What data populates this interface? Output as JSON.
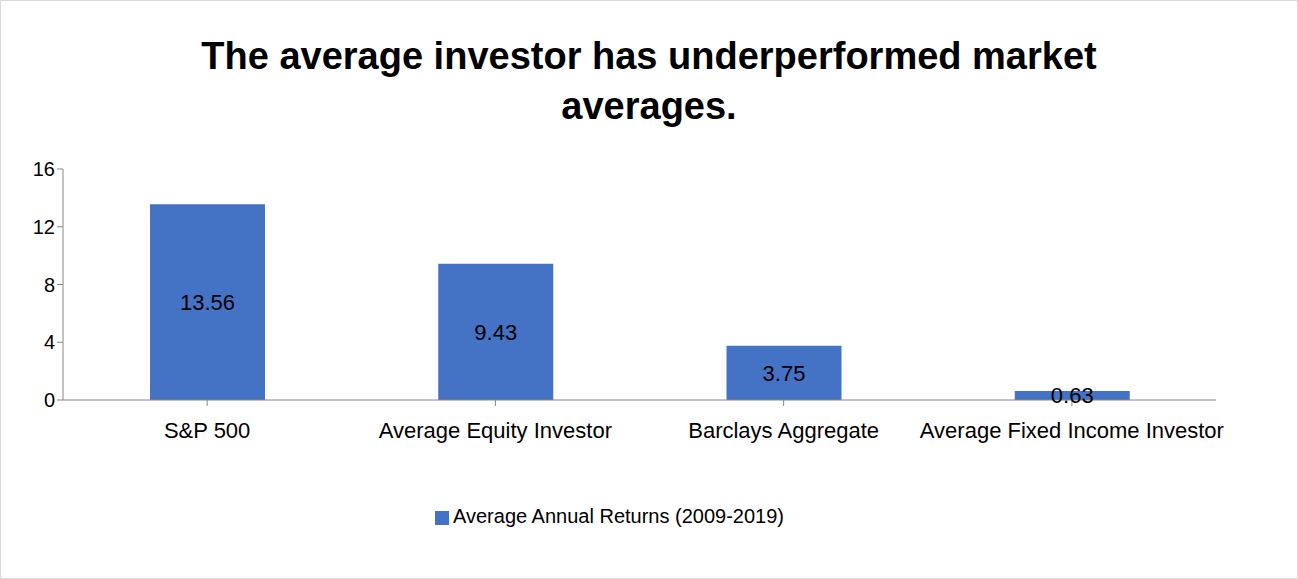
{
  "chart_data": {
    "type": "bar",
    "title": "The average investor has underperformed market averages.",
    "categories": [
      "S&P 500",
      "Average Equity Investor",
      "Barclays Aggregate",
      "Average Fixed Income Investor"
    ],
    "series": [
      {
        "name": "Average Annual Returns (2009-2019)",
        "color": "#4472c4",
        "values": [
          13.56,
          9.43,
          3.75,
          0.63
        ]
      }
    ],
    "ylim": [
      0,
      16
    ],
    "yticks": [
      0,
      4,
      8,
      12,
      16
    ],
    "grid": false,
    "data_labels": true,
    "legend": "bottom"
  }
}
